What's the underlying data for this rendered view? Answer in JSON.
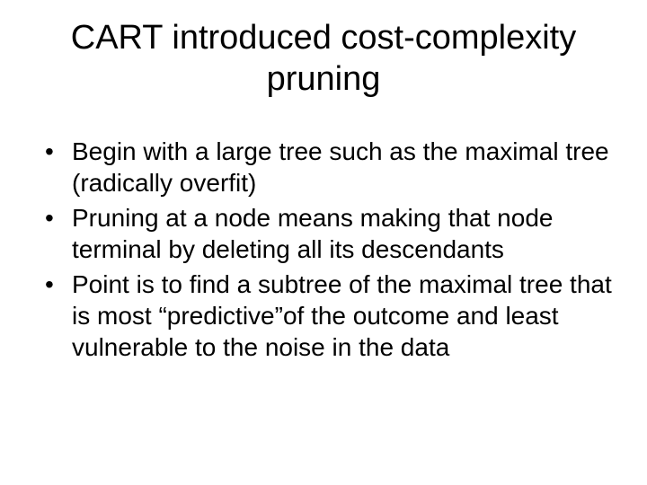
{
  "slide": {
    "title": "CART introduced cost-complexity pruning",
    "bullets": [
      "Begin with a large tree such as the maximal tree (radically overfit)",
      "Pruning at a node means making that node terminal by deleting all its descendants",
      "Point is to find a subtree of the maximal tree that is most “predictive”of the outcome and least vulnerable to the noise in the data"
    ],
    "background_color": "#ffffff",
    "text_color": "#000000",
    "title_fontsize": 38,
    "body_fontsize": 28,
    "font_family": "Arial"
  }
}
